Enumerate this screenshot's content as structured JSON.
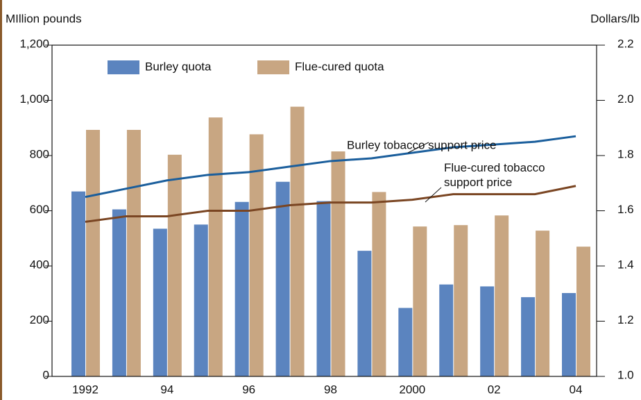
{
  "chart_data": {
    "type": "bar",
    "y_label": "MIllion pounds",
    "y2_label": "Dollars/lb",
    "categories": [
      "1992",
      null,
      "94",
      null,
      "96",
      null,
      "98",
      null,
      "2000",
      null,
      "02",
      null,
      "04"
    ],
    "series": [
      {
        "name": "Burley quota",
        "type": "bar",
        "color": "#5b84bf",
        "values": [
          670,
          605,
          535,
          550,
          632,
          705,
          635,
          455,
          248,
          333,
          326,
          287,
          302
        ]
      },
      {
        "name": "Flue-cured quota",
        "type": "bar",
        "color": "#c8a682",
        "values": [
          893,
          893,
          803,
          938,
          877,
          977,
          815,
          668,
          543,
          548,
          583,
          528,
          470
        ]
      },
      {
        "name": "Burley tobacco support price",
        "type": "line",
        "axis": "y2",
        "color": "#1a5e9c",
        "values": [
          1.65,
          1.68,
          1.71,
          1.73,
          1.74,
          1.76,
          1.78,
          1.79,
          1.81,
          1.83,
          1.84,
          1.85,
          1.87
        ]
      },
      {
        "name": "Flue-cured tobacco support price",
        "type": "line",
        "axis": "y2",
        "color": "#7a4522",
        "values": [
          1.56,
          1.58,
          1.58,
          1.6,
          1.6,
          1.62,
          1.63,
          1.63,
          1.64,
          1.66,
          1.66,
          1.66,
          1.69
        ]
      }
    ],
    "ylim": [
      0,
      1200
    ],
    "yticks": [
      0,
      200,
      400,
      600,
      800,
      {
        "value": 1000,
        "label": "1,000"
      },
      {
        "value": 1200,
        "label": "1,200"
      }
    ],
    "y2lim": [
      1.0,
      2.2
    ],
    "y2ticks": [
      {
        "value": 1.0,
        "label": "1.0"
      },
      1.2,
      1.4,
      1.6,
      1.8,
      {
        "value": 2.0,
        "label": "2.0"
      },
      2.2
    ],
    "legend": "top-left"
  }
}
